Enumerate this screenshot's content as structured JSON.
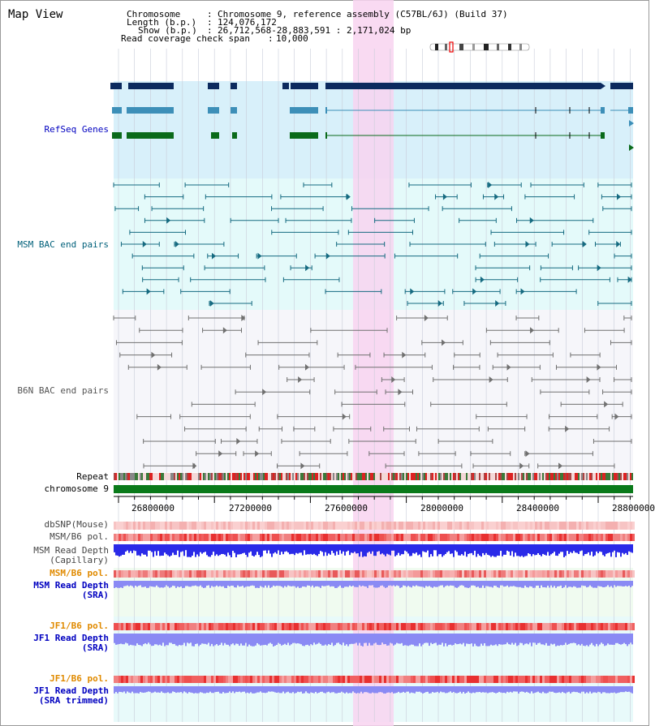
{
  "window": {
    "title": "Map View"
  },
  "info": {
    "chromosome_label": "Chromosome",
    "chromosome_value": "Chromosome 9, reference assembly (C57BL/6J) (Build 37)",
    "length_label": "Length (b.p.)",
    "length_value": "124,076,172",
    "show_label": "Show (b.p.)",
    "show_value": "26,712,568-28,883,591 : 2,171,024 bp",
    "coverage_label": "Read coverage check span",
    "coverage_value": "10,000"
  },
  "tracks": {
    "refseq": "RefSeq Genes",
    "msm_bac": "MSM BAC end pairs",
    "b6n_bac": "B6N BAC end pairs",
    "repeat": "Repeat",
    "chromosome": "chromosome 9",
    "dbsnp": "dbSNP(Mouse)",
    "msm_b6_pol": "MSM/B6 pol.",
    "msm_depth_cap_1": "MSM Read Depth",
    "msm_depth_cap_2": "(Capillary)",
    "msm_b6_pol_2": "MSM/B6 pol.",
    "msm_depth_sra_1": "MSM Read Depth",
    "msm_depth_sra_2": "(SRA)",
    "jf1_b6_pol": "JF1/B6 pol.",
    "jf1_depth_sra_1": "JF1 Read Depth",
    "jf1_depth_sra_2": "(SRA)",
    "jf1_b6_pol_2": "JF1/B6 pol.",
    "jf1_depth_trim_1": "JF1 Read Depth",
    "jf1_depth_trim_2": "(SRA trimmed)"
  },
  "axis": {
    "ticks": [
      "26800000",
      "27200000",
      "27600000",
      "28000000",
      "28400000",
      "28800000"
    ]
  },
  "colors": {
    "highlight": "#f8d4f0",
    "refseq_bg": "#d8f0fa",
    "msm_bg": "#e4fafa",
    "b6n_bg": "#f6f6fa",
    "gene_dark": "#0c2a5e",
    "gene_mid": "#3d8fb8",
    "gene_green": "#0a6a1a",
    "msm_line": "#156a80",
    "b6n_line": "#707070",
    "chrom_green": "#0a7a1a",
    "depth_blue": "#2a2ae8",
    "depth_light": "#8a8af4",
    "label_blue": "#0000c0",
    "label_orange": "#e08a00",
    "label_teal": "#00607a"
  }
}
